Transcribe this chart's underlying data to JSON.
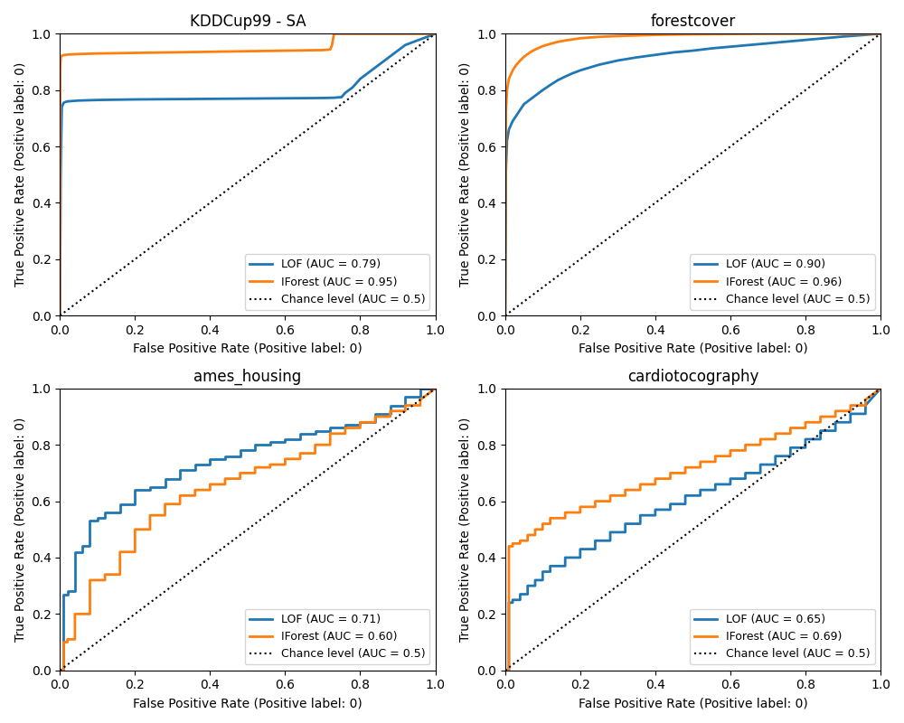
{
  "subplots": [
    {
      "title": "KDDCup99 - SA",
      "lof_auc": 0.79,
      "iforest_auc": 0.95,
      "lof_color": "#1f77b4",
      "iforest_color": "#ff7f0e"
    },
    {
      "title": "forestcover",
      "lof_auc": 0.9,
      "iforest_auc": 0.96,
      "lof_color": "#1f77b4",
      "iforest_color": "#ff7f0e"
    },
    {
      "title": "ames_housing",
      "lof_auc": 0.71,
      "iforest_auc": 0.6,
      "lof_color": "#1f77b4",
      "iforest_color": "#ff7f0e"
    },
    {
      "title": "cardiotocography",
      "lof_auc": 0.65,
      "iforest_auc": 0.69,
      "lof_color": "#1f77b4",
      "iforest_color": "#ff7f0e"
    }
  ],
  "xlabel": "False Positive Rate (Positive label: 0)",
  "ylabel": "True Positive Rate (Positive label: 0)",
  "chance_label": "Chance level (AUC = 0.5)",
  "legend_loc": "lower right",
  "figsize": [
    10.0,
    8.0
  ],
  "dpi": 100,
  "kdd_lof_fpr": [
    0.0,
    0.002,
    0.003,
    0.005,
    0.01,
    0.015,
    0.02,
    0.05,
    0.1,
    0.2,
    0.3,
    0.4,
    0.5,
    0.6,
    0.7,
    0.73,
    0.74,
    0.75,
    0.76,
    0.78,
    0.8,
    0.82,
    0.84,
    0.86,
    0.88,
    0.9,
    0.92,
    0.94,
    0.96,
    0.98,
    1.0
  ],
  "kdd_lof_tpr": [
    0.0,
    0.49,
    0.59,
    0.74,
    0.755,
    0.758,
    0.76,
    0.763,
    0.765,
    0.767,
    0.768,
    0.769,
    0.77,
    0.771,
    0.772,
    0.773,
    0.774,
    0.775,
    0.79,
    0.81,
    0.84,
    0.86,
    0.88,
    0.9,
    0.92,
    0.94,
    0.96,
    0.97,
    0.98,
    0.99,
    1.0
  ],
  "kdd_if_fpr": [
    0.0,
    0.001,
    0.002,
    0.003,
    0.005,
    0.01,
    0.02,
    0.05,
    0.1,
    0.2,
    0.3,
    0.4,
    0.5,
    0.6,
    0.7,
    0.71,
    0.72,
    0.725,
    0.73,
    0.74,
    0.75,
    0.8,
    0.85,
    0.9,
    0.95,
    1.0
  ],
  "kdd_if_tpr": [
    0.0,
    0.88,
    0.91,
    0.92,
    0.922,
    0.924,
    0.926,
    0.928,
    0.93,
    0.932,
    0.934,
    0.936,
    0.938,
    0.94,
    0.942,
    0.943,
    0.944,
    0.96,
    1.0,
    1.0,
    1.0,
    1.0,
    1.0,
    1.0,
    1.0,
    1.0
  ],
  "fc_lof_fpr": [
    0.0,
    0.002,
    0.005,
    0.01,
    0.02,
    0.03,
    0.04,
    0.05,
    0.06,
    0.07,
    0.08,
    0.09,
    0.1,
    0.12,
    0.14,
    0.16,
    0.18,
    0.2,
    0.25,
    0.3,
    0.35,
    0.4,
    0.45,
    0.5,
    0.55,
    0.6,
    0.65,
    0.7,
    0.75,
    0.8,
    0.85,
    0.9,
    0.95,
    1.0
  ],
  "fc_lof_tpr": [
    0.0,
    0.51,
    0.62,
    0.66,
    0.69,
    0.71,
    0.73,
    0.75,
    0.76,
    0.77,
    0.78,
    0.79,
    0.8,
    0.818,
    0.835,
    0.848,
    0.86,
    0.87,
    0.89,
    0.905,
    0.916,
    0.925,
    0.934,
    0.94,
    0.948,
    0.954,
    0.96,
    0.966,
    0.972,
    0.978,
    0.984,
    0.99,
    0.995,
    1.0
  ],
  "fc_if_fpr": [
    0.0,
    0.002,
    0.005,
    0.01,
    0.02,
    0.03,
    0.04,
    0.05,
    0.06,
    0.07,
    0.08,
    0.09,
    0.1,
    0.12,
    0.14,
    0.16,
    0.18,
    0.2,
    0.25,
    0.3,
    0.35,
    0.4,
    0.45,
    0.5,
    0.6,
    0.7,
    0.8,
    0.9,
    1.0
  ],
  "fc_if_tpr": [
    0.0,
    0.72,
    0.8,
    0.84,
    0.87,
    0.89,
    0.905,
    0.918,
    0.928,
    0.937,
    0.944,
    0.95,
    0.956,
    0.964,
    0.971,
    0.976,
    0.98,
    0.984,
    0.989,
    0.992,
    0.994,
    0.996,
    0.997,
    0.998,
    0.999,
    1.0,
    1.0,
    1.0,
    1.0
  ],
  "ah_lof_fpr": [
    0.0,
    0.01,
    0.01,
    0.02,
    0.02,
    0.04,
    0.04,
    0.06,
    0.06,
    0.08,
    0.08,
    0.1,
    0.1,
    0.12,
    0.12,
    0.16,
    0.16,
    0.2,
    0.2,
    0.24,
    0.24,
    0.28,
    0.28,
    0.32,
    0.32,
    0.36,
    0.36,
    0.4,
    0.4,
    0.44,
    0.44,
    0.48,
    0.48,
    0.52,
    0.52,
    0.56,
    0.56,
    0.6,
    0.6,
    0.64,
    0.64,
    0.68,
    0.68,
    0.72,
    0.72,
    0.76,
    0.76,
    0.8,
    0.8,
    0.84,
    0.84,
    0.88,
    0.88,
    0.92,
    0.92,
    0.96,
    0.96,
    1.0
  ],
  "ah_lof_tpr": [
    0.0,
    0.0,
    0.27,
    0.27,
    0.28,
    0.28,
    0.42,
    0.42,
    0.44,
    0.44,
    0.53,
    0.53,
    0.54,
    0.54,
    0.56,
    0.56,
    0.59,
    0.59,
    0.64,
    0.64,
    0.65,
    0.65,
    0.68,
    0.68,
    0.71,
    0.71,
    0.73,
    0.73,
    0.75,
    0.75,
    0.76,
    0.76,
    0.78,
    0.78,
    0.8,
    0.8,
    0.81,
    0.81,
    0.82,
    0.82,
    0.84,
    0.84,
    0.85,
    0.85,
    0.86,
    0.86,
    0.87,
    0.87,
    0.88,
    0.88,
    0.91,
    0.91,
    0.94,
    0.94,
    0.97,
    0.97,
    1.0,
    1.0
  ],
  "ah_if_fpr": [
    0.0,
    0.01,
    0.01,
    0.02,
    0.02,
    0.04,
    0.04,
    0.08,
    0.08,
    0.12,
    0.12,
    0.16,
    0.16,
    0.2,
    0.2,
    0.24,
    0.24,
    0.28,
    0.28,
    0.32,
    0.32,
    0.36,
    0.36,
    0.4,
    0.4,
    0.44,
    0.44,
    0.48,
    0.48,
    0.52,
    0.52,
    0.56,
    0.56,
    0.6,
    0.6,
    0.64,
    0.64,
    0.68,
    0.68,
    0.72,
    0.72,
    0.76,
    0.76,
    0.8,
    0.8,
    0.84,
    0.84,
    0.88,
    0.88,
    0.92,
    0.92,
    0.96,
    0.96,
    1.0
  ],
  "ah_if_tpr": [
    0.0,
    0.0,
    0.1,
    0.1,
    0.11,
    0.11,
    0.2,
    0.2,
    0.32,
    0.32,
    0.34,
    0.34,
    0.42,
    0.42,
    0.5,
    0.5,
    0.55,
    0.55,
    0.59,
    0.59,
    0.62,
    0.62,
    0.64,
    0.64,
    0.66,
    0.66,
    0.68,
    0.68,
    0.7,
    0.7,
    0.72,
    0.72,
    0.73,
    0.73,
    0.75,
    0.75,
    0.77,
    0.77,
    0.8,
    0.8,
    0.84,
    0.84,
    0.86,
    0.86,
    0.88,
    0.88,
    0.9,
    0.9,
    0.92,
    0.92,
    0.94,
    0.94,
    0.96,
    1.0
  ],
  "ct_lof_fpr": [
    0.0,
    0.01,
    0.01,
    0.02,
    0.02,
    0.04,
    0.04,
    0.06,
    0.06,
    0.08,
    0.08,
    0.1,
    0.1,
    0.12,
    0.12,
    0.16,
    0.16,
    0.2,
    0.2,
    0.24,
    0.24,
    0.28,
    0.28,
    0.32,
    0.32,
    0.36,
    0.36,
    0.4,
    0.4,
    0.44,
    0.44,
    0.48,
    0.48,
    0.52,
    0.52,
    0.56,
    0.56,
    0.6,
    0.6,
    0.64,
    0.64,
    0.68,
    0.68,
    0.72,
    0.72,
    0.76,
    0.76,
    0.8,
    0.8,
    0.84,
    0.84,
    0.88,
    0.88,
    0.92,
    0.92,
    0.96,
    0.96,
    1.0
  ],
  "ct_lof_tpr": [
    0.0,
    0.0,
    0.24,
    0.24,
    0.25,
    0.25,
    0.27,
    0.27,
    0.3,
    0.3,
    0.32,
    0.32,
    0.35,
    0.35,
    0.37,
    0.37,
    0.4,
    0.4,
    0.43,
    0.43,
    0.46,
    0.46,
    0.49,
    0.49,
    0.52,
    0.52,
    0.55,
    0.55,
    0.57,
    0.57,
    0.59,
    0.59,
    0.62,
    0.62,
    0.64,
    0.64,
    0.66,
    0.66,
    0.68,
    0.68,
    0.7,
    0.7,
    0.73,
    0.73,
    0.76,
    0.76,
    0.79,
    0.79,
    0.82,
    0.82,
    0.85,
    0.85,
    0.88,
    0.88,
    0.91,
    0.91,
    0.94,
    1.0
  ],
  "ct_if_fpr": [
    0.0,
    0.01,
    0.01,
    0.02,
    0.02,
    0.04,
    0.04,
    0.06,
    0.06,
    0.08,
    0.08,
    0.1,
    0.1,
    0.12,
    0.12,
    0.16,
    0.16,
    0.2,
    0.2,
    0.24,
    0.24,
    0.28,
    0.28,
    0.32,
    0.32,
    0.36,
    0.36,
    0.4,
    0.4,
    0.44,
    0.44,
    0.48,
    0.48,
    0.52,
    0.52,
    0.56,
    0.56,
    0.6,
    0.6,
    0.64,
    0.64,
    0.68,
    0.68,
    0.72,
    0.72,
    0.76,
    0.76,
    0.8,
    0.8,
    0.84,
    0.84,
    0.88,
    0.88,
    0.92,
    0.92,
    0.96,
    0.96,
    1.0
  ],
  "ct_if_tpr": [
    0.0,
    0.0,
    0.44,
    0.44,
    0.45,
    0.45,
    0.46,
    0.46,
    0.48,
    0.48,
    0.5,
    0.5,
    0.52,
    0.52,
    0.54,
    0.54,
    0.56,
    0.56,
    0.58,
    0.58,
    0.6,
    0.6,
    0.62,
    0.62,
    0.64,
    0.64,
    0.66,
    0.66,
    0.68,
    0.68,
    0.7,
    0.7,
    0.72,
    0.72,
    0.74,
    0.74,
    0.76,
    0.76,
    0.78,
    0.78,
    0.8,
    0.8,
    0.82,
    0.82,
    0.84,
    0.84,
    0.86,
    0.86,
    0.88,
    0.88,
    0.9,
    0.9,
    0.92,
    0.92,
    0.94,
    0.94,
    0.96,
    1.0
  ]
}
